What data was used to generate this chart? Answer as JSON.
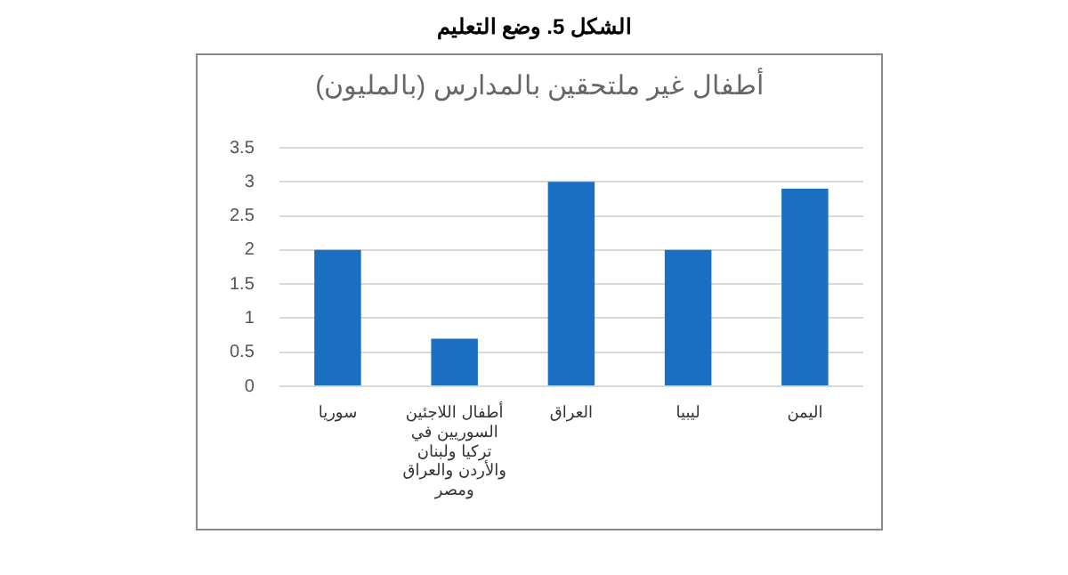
{
  "chart_data": {
    "type": "bar",
    "title": "الشكل 5. وضع التعليم",
    "subtitle": "أطفال غير ملتحقين بالمدارس (بالمليون)",
    "categories": [
      "سوريا",
      "أطفال اللاجئين السوريين في تركيا ولبنان والأردن والعراق ومصر",
      "العراق",
      "ليبيا",
      "اليمن"
    ],
    "values": [
      2,
      0.7,
      3,
      2,
      2.9
    ],
    "color": "#1a6fc2",
    "ylim": [
      0,
      3.5
    ],
    "yticks": [
      0,
      0.5,
      1,
      1.5,
      2,
      2.5,
      3,
      3.5
    ],
    "grid": "y"
  }
}
